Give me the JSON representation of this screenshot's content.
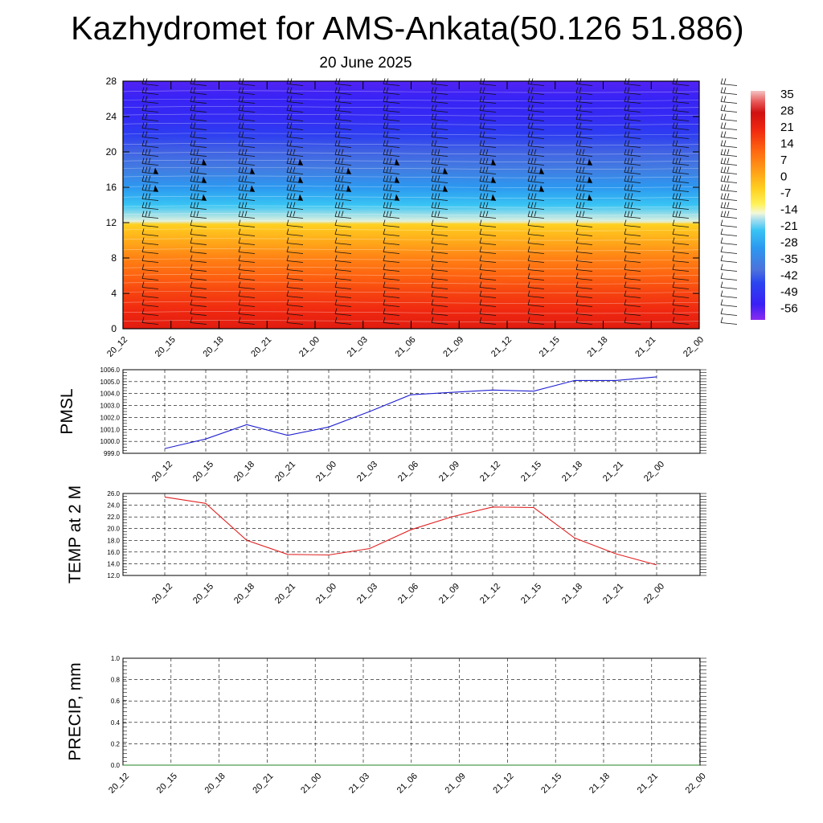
{
  "title": "Kazhydromet for AMS-Ankata(50.126 51.886)",
  "subtitle": "20 June 2025",
  "chart_data": [
    {
      "type": "heatmap",
      "title": "",
      "xlabel": "",
      "ylabel": "",
      "x_ticks": [
        "20_12",
        "20_15",
        "20_18",
        "20_21",
        "21_00",
        "21_03",
        "21_06",
        "21_09",
        "21_12",
        "21_15",
        "21_18",
        "21_21",
        "22_00"
      ],
      "y_ticks": [
        0,
        4,
        8,
        12,
        16,
        20,
        24,
        28
      ],
      "ylim": [
        0,
        28
      ],
      "colorbar_ticks": [
        35,
        28,
        21,
        14,
        7,
        0,
        -7,
        -14,
        -21,
        -28,
        -35,
        -42,
        -49,
        -56
      ],
      "colorbar_range": [
        -63,
        42
      ],
      "temperature_profile": {
        "levels": [
          0,
          2,
          4,
          6,
          8,
          10,
          11.8,
          12.2,
          14,
          16,
          18,
          20,
          22,
          24,
          26,
          28
        ],
        "values": [
          28,
          24,
          20,
          15,
          10,
          3,
          -3,
          -15,
          -22,
          -30,
          -37,
          -42,
          -48,
          -53,
          -55,
          -58
        ]
      },
      "overlay": "wind barbs",
      "colors": {
        "warm": "#e01010",
        "cold": "#1f1ff0"
      }
    },
    {
      "type": "line",
      "ylabel": "PMSL",
      "x": [
        "20_12",
        "20_15",
        "20_18",
        "20_21",
        "21_00",
        "21_03",
        "21_06",
        "21_09",
        "21_12",
        "21_15",
        "21_18",
        "21_21",
        "22_00"
      ],
      "values": [
        999.4,
        1000.2,
        1001.4,
        1000.5,
        1001.2,
        1002.5,
        1003.9,
        1004.1,
        1004.3,
        1004.2,
        1005.1,
        1005.1,
        1005.4
      ],
      "ylim": [
        999.0,
        1006.0
      ],
      "y_ticks": [
        "1006.0",
        "1005.0",
        "1004.0",
        "1003.0",
        "1002.0",
        "1001.0",
        "1000.0",
        "999.0"
      ],
      "grid": true,
      "color": "#2020d0"
    },
    {
      "type": "line",
      "ylabel": "TEMP at 2 M",
      "x": [
        "20_12",
        "20_15",
        "20_18",
        "20_21",
        "21_00",
        "21_03",
        "21_06",
        "21_09",
        "21_12",
        "21_15",
        "21_18",
        "21_21",
        "22_00"
      ],
      "values": [
        25.4,
        24.3,
        18.0,
        15.6,
        15.5,
        16.6,
        19.8,
        22.0,
        23.7,
        23.6,
        18.4,
        15.7,
        13.8
      ],
      "ylim": [
        12.0,
        26.0
      ],
      "y_ticks": [
        "26.0",
        "24.0",
        "22.0",
        "20.0",
        "18.0",
        "16.0",
        "14.0",
        "12.0"
      ],
      "grid": true,
      "color": "#e02020"
    },
    {
      "type": "line",
      "ylabel": "PRECIP, mm",
      "x": [
        "20_12",
        "20_15",
        "20_18",
        "20_21",
        "21_00",
        "21_03",
        "21_06",
        "21_09",
        "21_12",
        "21_15",
        "21_18",
        "21_21",
        "22_00"
      ],
      "values": [
        0,
        0,
        0,
        0,
        0,
        0,
        0,
        0,
        0,
        0,
        0,
        0,
        0
      ],
      "ylim": [
        0.0,
        1.0
      ],
      "y_ticks": [
        "1.0",
        "0.8",
        "0.6",
        "0.4",
        "0.2",
        "0.0"
      ],
      "grid": true,
      "color": "#208020"
    }
  ]
}
